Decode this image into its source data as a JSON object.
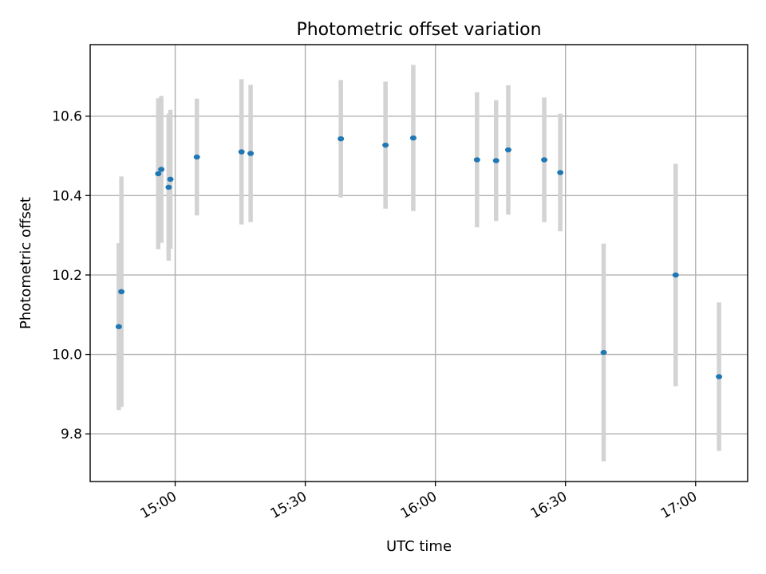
{
  "chart_data": {
    "type": "scatter",
    "title": "Photometric offset variation",
    "xlabel": "UTC time",
    "ylabel": "Photometric offset",
    "x_ticks": [
      "15:00",
      "15:30",
      "16:00",
      "16:30",
      "17:00"
    ],
    "y_ticks": [
      "9.8",
      "10.0",
      "10.2",
      "10.4",
      "10.6"
    ],
    "xlim": [
      "14:40:24",
      "17:12:00"
    ],
    "ylim": [
      9.68,
      10.78
    ],
    "grid": true,
    "colors": {
      "marker": "#1f77b4",
      "errorbar": "#d3d3d3",
      "grid": "#b0b0b0"
    },
    "points": [
      {
        "time": "14:47:00",
        "value": 10.07,
        "err": 0.21
      },
      {
        "time": "14:47:36",
        "value": 10.158,
        "err": 0.29
      },
      {
        "time": "14:56:06",
        "value": 10.455,
        "err": 0.19
      },
      {
        "time": "14:56:48",
        "value": 10.466,
        "err": 0.185
      },
      {
        "time": "14:58:30",
        "value": 10.421,
        "err": 0.185
      },
      {
        "time": "14:58:54",
        "value": 10.441,
        "err": 0.175
      },
      {
        "time": "15:05:00",
        "value": 10.497,
        "err": 0.147
      },
      {
        "time": "15:15:18",
        "value": 10.51,
        "err": 0.183
      },
      {
        "time": "15:17:24",
        "value": 10.506,
        "err": 0.173
      },
      {
        "time": "15:38:12",
        "value": 10.543,
        "err": 0.148
      },
      {
        "time": "15:48:30",
        "value": 10.527,
        "err": 0.16
      },
      {
        "time": "15:54:54",
        "value": 10.545,
        "err": 0.184
      },
      {
        "time": "16:09:36",
        "value": 10.49,
        "err": 0.17
      },
      {
        "time": "16:14:00",
        "value": 10.488,
        "err": 0.152
      },
      {
        "time": "16:16:48",
        "value": 10.515,
        "err": 0.163
      },
      {
        "time": "16:25:06",
        "value": 10.49,
        "err": 0.157
      },
      {
        "time": "16:28:48",
        "value": 10.458,
        "err": 0.148
      },
      {
        "time": "16:38:48",
        "value": 10.005,
        "err": 0.274
      },
      {
        "time": "16:55:24",
        "value": 10.2,
        "err": 0.28
      },
      {
        "time": "17:05:24",
        "value": 9.944,
        "err": 0.187
      }
    ]
  }
}
